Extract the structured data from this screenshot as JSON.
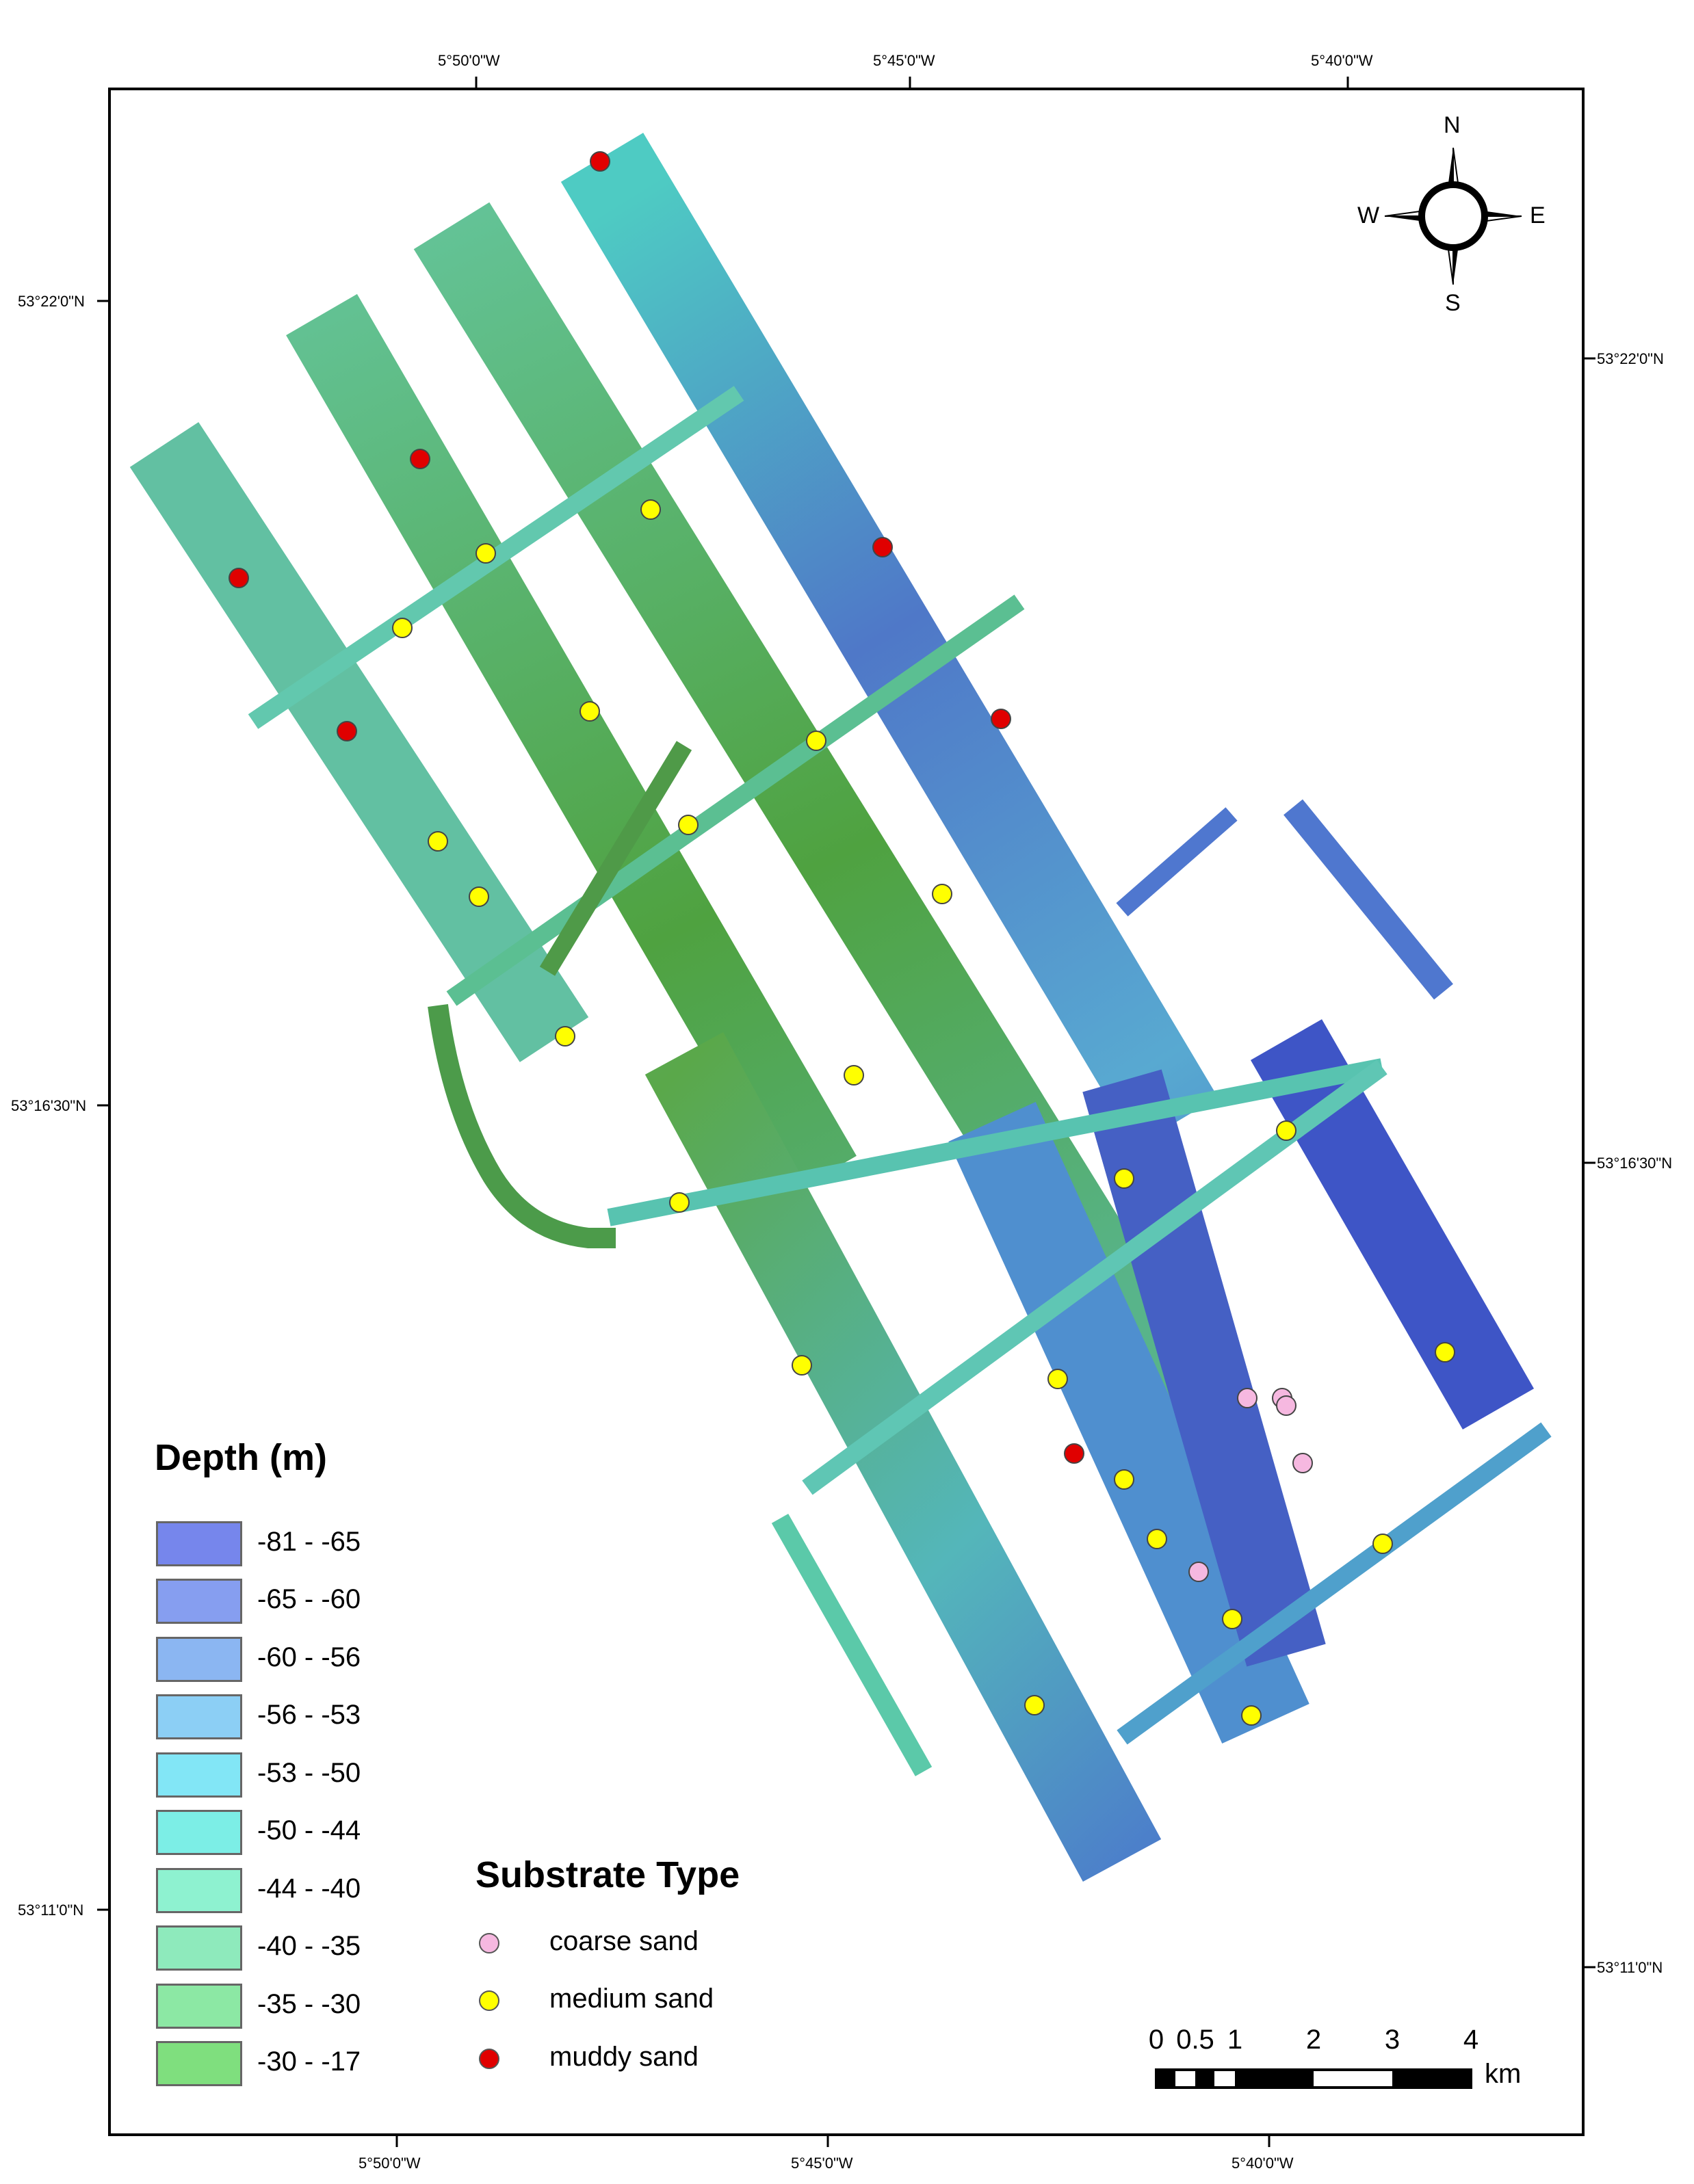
{
  "map": {
    "graticule": {
      "top_lon_labels": [
        "5°50'0\"W",
        "5°45'0\"W",
        "5°40'0\"W"
      ],
      "bottom_lon_labels": [
        "5°50'0\"W",
        "5°45'0\"W",
        "5°40'0\"W"
      ],
      "left_lat_labels": [
        "53°22'0\"N",
        "53°16'30\"N",
        "53°11'0\"N"
      ],
      "right_lat_labels": [
        "53°22'0\"N",
        "53°16'30\"N",
        "53°11'0\"N"
      ]
    },
    "north_arrow": {
      "n": "N",
      "s": "S",
      "e": "E",
      "w": "W"
    },
    "depth_legend": {
      "title": "Depth (m)",
      "classes": [
        {
          "label": "-81 - -65",
          "color": "#7686ec"
        },
        {
          "label": "-65 - -60",
          "color": "#869ef0"
        },
        {
          "label": "-60 - -56",
          "color": "#8bb6f2"
        },
        {
          "label": "-56 - -53",
          "color": "#8ccff5"
        },
        {
          "label": "-53 - -50",
          "color": "#82e6f6"
        },
        {
          "label": "-50 - -44",
          "color": "#7ceee6"
        },
        {
          "label": "-44 - -40",
          "color": "#8ef2d0"
        },
        {
          "label": "-40 - -35",
          "color": "#8eeabc"
        },
        {
          "label": "-35 - -30",
          "color": "#8ce8a4"
        },
        {
          "label": "-30 - -17",
          "color": "#7fdf7e"
        }
      ]
    },
    "substrate_legend": {
      "title": "Substrate Type",
      "types": [
        {
          "label": "coarse sand",
          "color": "#f6b8e0"
        },
        {
          "label": "medium sand",
          "color": "#ffff00"
        },
        {
          "label": "muddy sand",
          "color": "#e00000"
        }
      ]
    },
    "scale_bar": {
      "tick_labels": [
        "0",
        "0.5",
        "1",
        "2",
        "3",
        "4"
      ],
      "unit": "km"
    }
  }
}
